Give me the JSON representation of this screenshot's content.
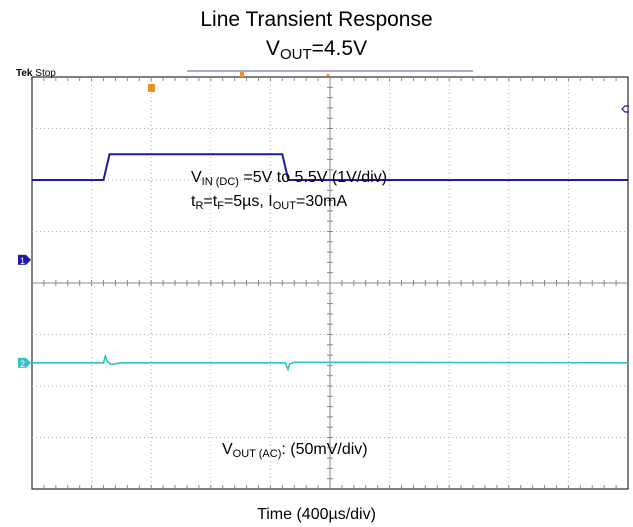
{
  "chart_data": {
    "type": "line",
    "title": "Line Transient Response",
    "subtitle": {
      "prefix": "V",
      "sub": "OUT",
      "suffix": "=4.5V"
    },
    "xlabel": "Time (400µs/div)",
    "grid": true,
    "divisions": {
      "x": 10,
      "y": 8
    },
    "time_per_div_us": 400,
    "scope_status": {
      "brand": "Tek",
      "state": "Stop"
    },
    "channel_markers": [
      "1",
      "2"
    ],
    "annotations": {
      "vin": {
        "prefix": "V",
        "sub": "IN (DC)",
        "suffix": " =5V to 5.5V (1V/div)"
      },
      "timing": {
        "tr": "t",
        "tr_sub": "R",
        "tf": "=t",
        "tf_sub": "F",
        "mid": "=5µs, I",
        "iout_sub": "OUT",
        "end": "=30mA"
      },
      "vout": {
        "prefix": "V",
        "sub": "OUT (AC)",
        "suffix": ": (50mV/div)"
      }
    },
    "series": [
      {
        "name": "CH1",
        "color": "#1a1aa6",
        "x_us": [
          0,
          480,
          520,
          1680,
          1720,
          4000
        ],
        "y_div": [
          2.0,
          2.0,
          2.5,
          2.5,
          2.0,
          2.0
        ]
      },
      {
        "name": "CH2",
        "color": "#30c0c8",
        "x_us": [
          0,
          480,
          492,
          505,
          530,
          600,
          1600,
          1700,
          1718,
          1730,
          1760,
          4000
        ],
        "y_div": [
          -1.55,
          -1.55,
          -1.42,
          -1.52,
          -1.58,
          -1.55,
          -1.55,
          -1.55,
          -1.68,
          -1.57,
          -1.54,
          -1.55
        ]
      }
    ]
  }
}
